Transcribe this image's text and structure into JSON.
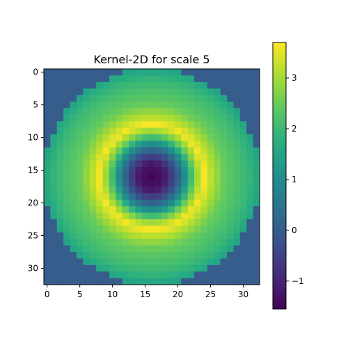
{
  "chart_data": {
    "type": "heatmap",
    "title": "Kernel-2D for scale 5",
    "xlabel": "",
    "ylabel": "",
    "grid": false,
    "size": 33,
    "xlim": [
      -0.5,
      32.5
    ],
    "ylim": [
      32.5,
      -0.5
    ],
    "xticks": [
      0,
      5,
      10,
      15,
      20,
      25,
      30
    ],
    "yticks": [
      0,
      5,
      10,
      15,
      20,
      25,
      30
    ],
    "colormap": "viridis",
    "colorbar": {
      "range": [
        -1.55,
        3.7
      ],
      "ticks": [
        -1,
        0,
        1,
        2,
        3
      ]
    },
    "kernel": {
      "description_values": "Radially symmetric kernel centered at (16,16); value as function of radius r in pixels",
      "center": [
        16,
        16
      ],
      "radius_max": 16.5,
      "outside_value": 0.0,
      "profile_r": [
        0,
        2,
        3.5,
        5,
        6.5,
        8,
        9,
        11,
        13,
        15,
        16.5
      ],
      "profile_v": [
        -1.5,
        -1.2,
        -0.3,
        1.0,
        2.6,
        3.65,
        3.2,
        2.5,
        2.2,
        1.9,
        1.5
      ]
    }
  }
}
